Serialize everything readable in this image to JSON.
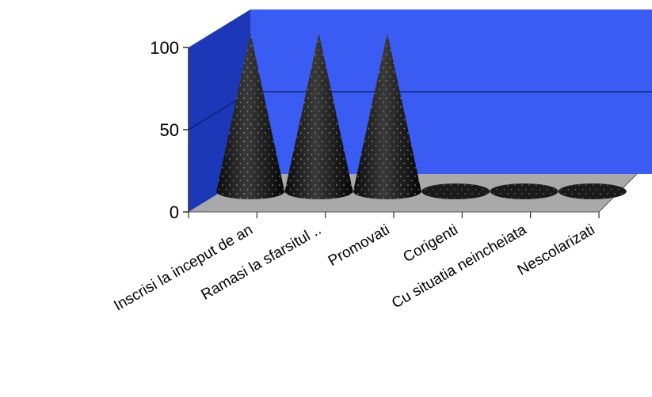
{
  "chart_data": {
    "type": "bar",
    "style": "3d-cone",
    "categories": [
      "Inscrisi la inceput de an",
      "Ramasi la sfarsitul ..",
      "Promovati",
      "Corigenti",
      "Cu situatia neincheiata",
      "Nescolarizati"
    ],
    "values": [
      100,
      100,
      100,
      0,
      0,
      0
    ],
    "ylim": [
      0,
      100
    ],
    "yticks": [
      "0",
      "50",
      "100"
    ],
    "grid": true,
    "legend": "none",
    "colors": {
      "back_wall": "#3a5cf2",
      "side_wall": "#1c38b8",
      "floor": "#a9a9a9",
      "cone": "#1a1a1a",
      "gridline": "#0a1a60"
    }
  }
}
